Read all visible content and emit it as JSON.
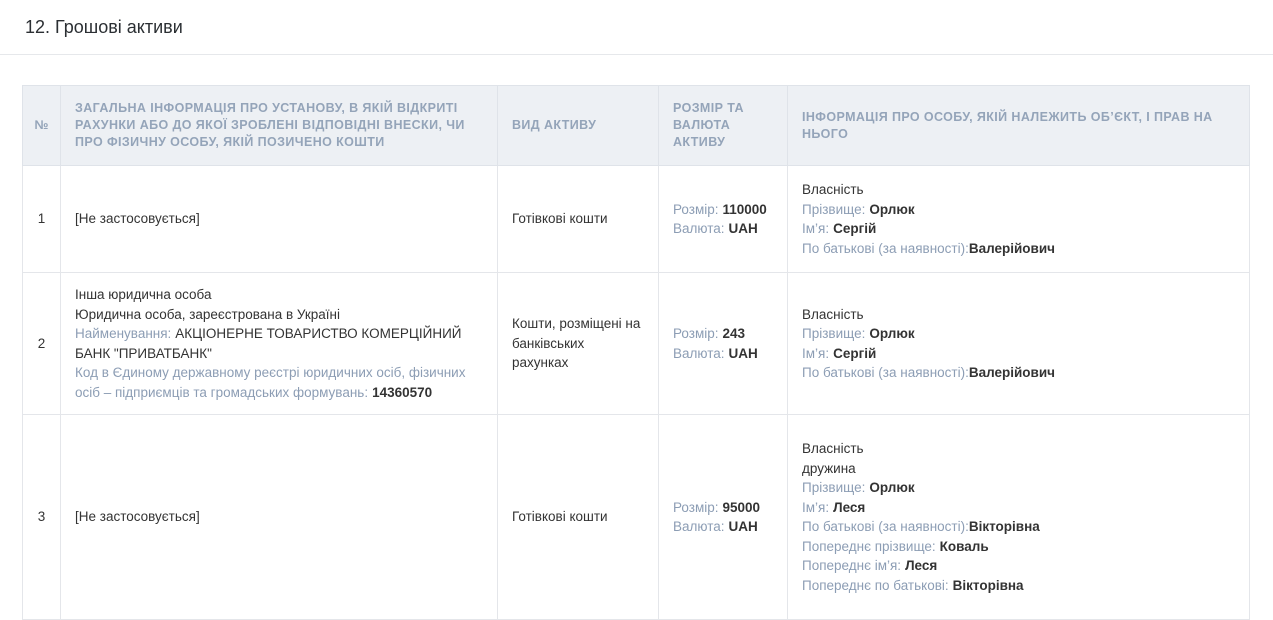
{
  "page": {
    "title": "12. Грошові активи"
  },
  "colors": {
    "header_bg": "#edf0f4",
    "header_text": "#94a4b9",
    "label_text": "#8c9db4",
    "value_text": "#333333",
    "border": "#e4e6ea"
  },
  "table": {
    "headers": {
      "num": "№",
      "info": "ЗАГАЛЬНА ІНФОРМАЦІЯ ПРО УСТАНОВУ, В ЯКІЙ ВІДКРИТІ РАХУНКИ АБО ДО ЯКОЇ ЗРОБЛЕНІ ВІДПОВІДНІ ВНЕСКИ, ЧИ ПРО ФІЗИЧНУ ОСОБУ, ЯКІЙ ПОЗИЧЕНО КОШТИ",
      "asset_type": "ВИД АКТИВУ",
      "amount": "РОЗМІР ТА ВАЛЮТА АКТИВУ",
      "owner": "ІНФОРМАЦІЯ ПРО ОСОБУ, ЯКІЙ НАЛЕЖИТЬ ОБ’ЄКТ, І ПРАВ НА НЬОГО"
    },
    "rows": [
      {
        "num": "1",
        "info_na": "[Не застосовується]",
        "asset_type": "Готівкові кошти",
        "amount": {
          "size_label": "Розмір:",
          "size_value": "110000",
          "currency_label": "Валюта:",
          "currency_value": "UAH"
        },
        "owner": {
          "right_type": "Власність",
          "surname_label": "Прізвище:",
          "surname": "Орлюк",
          "name_label": "Ім’я:",
          "name": "Сергій",
          "patronymic_label": "По батькові (за наявності):",
          "patronymic": "Валерійович"
        }
      },
      {
        "num": "2",
        "info": {
          "line1": "Інша юридична особа",
          "line2": "Юридична особа, зареєстрована в Україні",
          "name_label": "Найменування:",
          "name_value": "АКЦІОНЕРНЕ ТОВАРИСТВО КОМЕРЦІЙНИЙ БАНК \"ПРИВАТБАНК\"",
          "code_label": "Код в Єдиному державному реєстрі юридичних осіб, фізичних осіб – підприємців та громадських формувань:",
          "code_value": "14360570"
        },
        "asset_type": "Кошти, розміщені на банківських рахунках",
        "amount": {
          "size_label": "Розмір:",
          "size_value": "243",
          "currency_label": "Валюта:",
          "currency_value": "UAH"
        },
        "owner": {
          "right_type": "Власність",
          "surname_label": "Прізвище:",
          "surname": "Орлюк",
          "name_label": "Ім’я:",
          "name": "Сергій",
          "patronymic_label": "По батькові (за наявності):",
          "patronymic": "Валерійович"
        }
      },
      {
        "num": "3",
        "info_na": "[Не застосовується]",
        "asset_type": "Готівкові кошти",
        "amount": {
          "size_label": "Розмір:",
          "size_value": "95000",
          "currency_label": "Валюта:",
          "currency_value": "UAH"
        },
        "owner": {
          "right_type": "Власність",
          "relation": "дружина",
          "surname_label": "Прізвище:",
          "surname": "Орлюк",
          "name_label": "Ім’я:",
          "name": "Леся",
          "patronymic_label": "По батькові (за наявності):",
          "patronymic": "Вікторівна",
          "prev_surname_label": "Попереднє прізвище:",
          "prev_surname": "Коваль",
          "prev_name_label": "Попереднє ім’я:",
          "prev_name": "Леся",
          "prev_patronymic_label": "Попереднє по батькові:",
          "prev_patronymic": "Вікторівна"
        }
      }
    ]
  }
}
